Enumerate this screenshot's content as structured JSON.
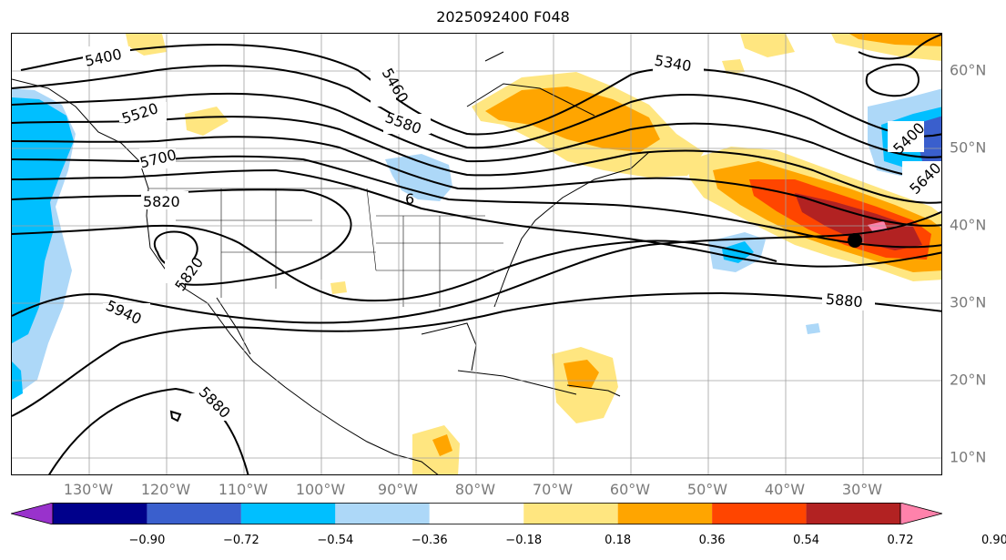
{
  "title": "2025092400 F048",
  "lon_labels": [
    "130°W",
    "120°W",
    "110°W",
    "100°W",
    "90°W",
    "80°W",
    "70°W",
    "60°W",
    "50°W",
    "40°W",
    "30°W"
  ],
  "lat_labels": [
    "60°N",
    "50°N",
    "40°N",
    "30°N",
    "20°N",
    "10°N"
  ],
  "colorbar": {
    "ticks": [
      "−0.90",
      "−0.72",
      "−0.54",
      "−0.36",
      "−0.18",
      "0.18",
      "0.36",
      "0.54",
      "0.72",
      "0.90"
    ],
    "colors": [
      "#9932cc",
      "#00008b",
      "#3a5fcd",
      "#00bfff",
      "#add8f8",
      "#ffffff",
      "#ffe680",
      "#ffa500",
      "#ff4500",
      "#b22222",
      "#ff82ab"
    ]
  },
  "contour_labels": [
    "5400",
    "5460",
    "5520",
    "5580",
    "5700",
    "5820",
    "5820",
    "5940",
    "5880",
    "5880",
    "5340",
    "5400",
    "5640"
  ],
  "legend_text": "6"
}
